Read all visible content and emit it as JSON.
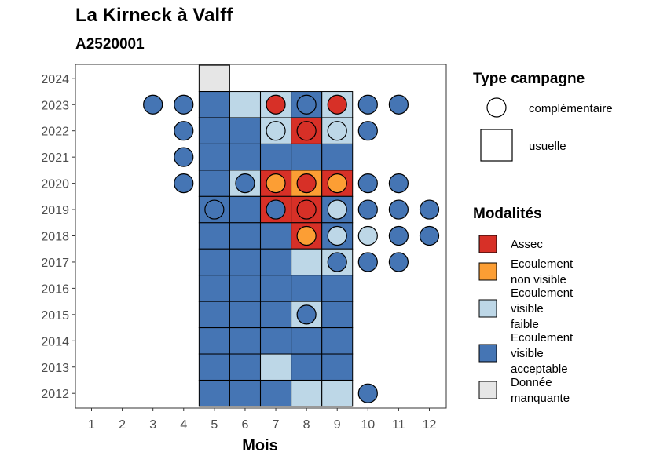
{
  "chart_data": {
    "type": "heatmap",
    "title": "La Kirneck à Valff",
    "subtitle": "A2520001",
    "xlabel": "Mois",
    "ylabel": "",
    "x_ticks": [
      1,
      2,
      3,
      4,
      5,
      6,
      7,
      8,
      9,
      10,
      11,
      12
    ],
    "y_ticks": [
      2012,
      2013,
      2014,
      2015,
      2016,
      2017,
      2018,
      2019,
      2020,
      2021,
      2022,
      2023,
      2024
    ],
    "colors": {
      "Assec": "#d73027",
      "Ecoulement non visible": "#fc9e34",
      "Ecoulement visible faible": "#bdd7e7",
      "Ecoulement visible acceptable": "#4575b4",
      "Donnée manquante": "#e6e6e6"
    },
    "legend_campaign": {
      "title": "Type campagne",
      "items": [
        {
          "shape": "circle",
          "label": "complémentaire"
        },
        {
          "shape": "square",
          "label": "usuelle"
        }
      ]
    },
    "legend_modalites": {
      "title": "Modalités",
      "items": [
        {
          "key": "Assec",
          "lines": [
            "Assec"
          ]
        },
        {
          "key": "Ecoulement non visible",
          "lines": [
            "Ecoulement",
            "non visible"
          ]
        },
        {
          "key": "Ecoulement visible faible",
          "lines": [
            "Ecoulement",
            "visible",
            "faible"
          ]
        },
        {
          "key": "Ecoulement visible acceptable",
          "lines": [
            "Ecoulement",
            "visible",
            "acceptable"
          ]
        },
        {
          "key": "Donnée manquante",
          "lines": [
            "Donnée",
            "manquante"
          ]
        }
      ]
    },
    "usuelle": [
      {
        "year": 2024,
        "month": 5,
        "value": "Donnée manquante"
      },
      {
        "year": 2023,
        "month": 5,
        "value": "Ecoulement visible acceptable"
      },
      {
        "year": 2023,
        "month": 6,
        "value": "Ecoulement visible faible"
      },
      {
        "year": 2023,
        "month": 7,
        "value": "Ecoulement visible faible"
      },
      {
        "year": 2023,
        "month": 8,
        "value": "Ecoulement visible acceptable"
      },
      {
        "year": 2023,
        "month": 9,
        "value": "Ecoulement visible faible"
      },
      {
        "year": 2022,
        "month": 5,
        "value": "Ecoulement visible acceptable"
      },
      {
        "year": 2022,
        "month": 6,
        "value": "Ecoulement visible acceptable"
      },
      {
        "year": 2022,
        "month": 7,
        "value": "Ecoulement visible faible"
      },
      {
        "year": 2022,
        "month": 8,
        "value": "Assec"
      },
      {
        "year": 2022,
        "month": 9,
        "value": "Ecoulement visible faible"
      },
      {
        "year": 2021,
        "month": 5,
        "value": "Ecoulement visible acceptable"
      },
      {
        "year": 2021,
        "month": 6,
        "value": "Ecoulement visible acceptable"
      },
      {
        "year": 2021,
        "month": 7,
        "value": "Ecoulement visible acceptable"
      },
      {
        "year": 2021,
        "month": 8,
        "value": "Ecoulement visible acceptable"
      },
      {
        "year": 2021,
        "month": 9,
        "value": "Ecoulement visible acceptable"
      },
      {
        "year": 2020,
        "month": 5,
        "value": "Ecoulement visible acceptable"
      },
      {
        "year": 2020,
        "month": 6,
        "value": "Ecoulement visible faible"
      },
      {
        "year": 2020,
        "month": 7,
        "value": "Assec"
      },
      {
        "year": 2020,
        "month": 8,
        "value": "Ecoulement non visible"
      },
      {
        "year": 2020,
        "month": 9,
        "value": "Assec"
      },
      {
        "year": 2019,
        "month": 5,
        "value": "Ecoulement visible acceptable"
      },
      {
        "year": 2019,
        "month": 6,
        "value": "Ecoulement visible acceptable"
      },
      {
        "year": 2019,
        "month": 7,
        "value": "Assec"
      },
      {
        "year": 2019,
        "month": 8,
        "value": "Assec"
      },
      {
        "year": 2019,
        "month": 9,
        "value": "Ecoulement visible acceptable"
      },
      {
        "year": 2018,
        "month": 5,
        "value": "Ecoulement visible acceptable"
      },
      {
        "year": 2018,
        "month": 6,
        "value": "Ecoulement visible acceptable"
      },
      {
        "year": 2018,
        "month": 7,
        "value": "Ecoulement visible acceptable"
      },
      {
        "year": 2018,
        "month": 8,
        "value": "Assec"
      },
      {
        "year": 2018,
        "month": 9,
        "value": "Ecoulement visible acceptable"
      },
      {
        "year": 2017,
        "month": 5,
        "value": "Ecoulement visible acceptable"
      },
      {
        "year": 2017,
        "month": 6,
        "value": "Ecoulement visible acceptable"
      },
      {
        "year": 2017,
        "month": 7,
        "value": "Ecoulement visible acceptable"
      },
      {
        "year": 2017,
        "month": 8,
        "value": "Ecoulement visible faible"
      },
      {
        "year": 2017,
        "month": 9,
        "value": "Ecoulement visible faible"
      },
      {
        "year": 2016,
        "month": 5,
        "value": "Ecoulement visible acceptable"
      },
      {
        "year": 2016,
        "month": 6,
        "value": "Ecoulement visible acceptable"
      },
      {
        "year": 2016,
        "month": 7,
        "value": "Ecoulement visible acceptable"
      },
      {
        "year": 2016,
        "month": 8,
        "value": "Ecoulement visible acceptable"
      },
      {
        "year": 2016,
        "month": 9,
        "value": "Ecoulement visible acceptable"
      },
      {
        "year": 2015,
        "month": 5,
        "value": "Ecoulement visible acceptable"
      },
      {
        "year": 2015,
        "month": 6,
        "value": "Ecoulement visible acceptable"
      },
      {
        "year": 2015,
        "month": 7,
        "value": "Ecoulement visible acceptable"
      },
      {
        "year": 2015,
        "month": 8,
        "value": "Ecoulement visible faible"
      },
      {
        "year": 2015,
        "month": 9,
        "value": "Ecoulement visible acceptable"
      },
      {
        "year": 2014,
        "month": 5,
        "value": "Ecoulement visible acceptable"
      },
      {
        "year": 2014,
        "month": 6,
        "value": "Ecoulement visible acceptable"
      },
      {
        "year": 2014,
        "month": 7,
        "value": "Ecoulement visible acceptable"
      },
      {
        "year": 2014,
        "month": 8,
        "value": "Ecoulement visible acceptable"
      },
      {
        "year": 2014,
        "month": 9,
        "value": "Ecoulement visible acceptable"
      },
      {
        "year": 2013,
        "month": 5,
        "value": "Ecoulement visible acceptable"
      },
      {
        "year": 2013,
        "month": 6,
        "value": "Ecoulement visible acceptable"
      },
      {
        "year": 2013,
        "month": 7,
        "value": "Ecoulement visible faible"
      },
      {
        "year": 2013,
        "month": 8,
        "value": "Ecoulement visible acceptable"
      },
      {
        "year": 2013,
        "month": 9,
        "value": "Ecoulement visible acceptable"
      },
      {
        "year": 2012,
        "month": 5,
        "value": "Ecoulement visible acceptable"
      },
      {
        "year": 2012,
        "month": 6,
        "value": "Ecoulement visible acceptable"
      },
      {
        "year": 2012,
        "month": 7,
        "value": "Ecoulement visible acceptable"
      },
      {
        "year": 2012,
        "month": 8,
        "value": "Ecoulement visible faible"
      },
      {
        "year": 2012,
        "month": 9,
        "value": "Ecoulement visible faible"
      }
    ],
    "complementaire": [
      {
        "year": 2023,
        "month": 3,
        "value": "Ecoulement visible acceptable"
      },
      {
        "year": 2023,
        "month": 4,
        "value": "Ecoulement visible acceptable"
      },
      {
        "year": 2023,
        "month": 7,
        "value": "Assec"
      },
      {
        "year": 2023,
        "month": 8,
        "value": "Ecoulement visible acceptable"
      },
      {
        "year": 2023,
        "month": 9,
        "value": "Assec"
      },
      {
        "year": 2023,
        "month": 10,
        "value": "Ecoulement visible acceptable"
      },
      {
        "year": 2023,
        "month": 11,
        "value": "Ecoulement visible acceptable"
      },
      {
        "year": 2022,
        "month": 4,
        "value": "Ecoulement visible acceptable"
      },
      {
        "year": 2022,
        "month": 7,
        "value": "Ecoulement visible faible"
      },
      {
        "year": 2022,
        "month": 8,
        "value": "Assec"
      },
      {
        "year": 2022,
        "month": 9,
        "value": "Ecoulement visible faible"
      },
      {
        "year": 2022,
        "month": 10,
        "value": "Ecoulement visible acceptable"
      },
      {
        "year": 2021,
        "month": 4,
        "value": "Ecoulement visible acceptable"
      },
      {
        "year": 2020,
        "month": 4,
        "value": "Ecoulement visible acceptable"
      },
      {
        "year": 2020,
        "month": 6,
        "value": "Ecoulement visible acceptable"
      },
      {
        "year": 2020,
        "month": 7,
        "value": "Ecoulement non visible"
      },
      {
        "year": 2020,
        "month": 8,
        "value": "Assec"
      },
      {
        "year": 2020,
        "month": 9,
        "value": "Ecoulement non visible"
      },
      {
        "year": 2020,
        "month": 10,
        "value": "Ecoulement visible acceptable"
      },
      {
        "year": 2020,
        "month": 11,
        "value": "Ecoulement visible acceptable"
      },
      {
        "year": 2019,
        "month": 5,
        "value": "Ecoulement visible acceptable"
      },
      {
        "year": 2019,
        "month": 7,
        "value": "Ecoulement visible acceptable"
      },
      {
        "year": 2019,
        "month": 8,
        "value": "Assec"
      },
      {
        "year": 2019,
        "month": 9,
        "value": "Ecoulement visible faible"
      },
      {
        "year": 2019,
        "month": 10,
        "value": "Ecoulement visible acceptable"
      },
      {
        "year": 2019,
        "month": 11,
        "value": "Ecoulement visible acceptable"
      },
      {
        "year": 2019,
        "month": 12,
        "value": "Ecoulement visible acceptable"
      },
      {
        "year": 2018,
        "month": 8,
        "value": "Ecoulement non visible"
      },
      {
        "year": 2018,
        "month": 9,
        "value": "Ecoulement visible faible"
      },
      {
        "year": 2018,
        "month": 10,
        "value": "Ecoulement visible faible"
      },
      {
        "year": 2018,
        "month": 11,
        "value": "Ecoulement visible acceptable"
      },
      {
        "year": 2018,
        "month": 12,
        "value": "Ecoulement visible acceptable"
      },
      {
        "year": 2017,
        "month": 9,
        "value": "Ecoulement visible acceptable"
      },
      {
        "year": 2017,
        "month": 10,
        "value": "Ecoulement visible acceptable"
      },
      {
        "year": 2017,
        "month": 11,
        "value": "Ecoulement visible acceptable"
      },
      {
        "year": 2015,
        "month": 8,
        "value": "Ecoulement visible acceptable"
      },
      {
        "year": 2012,
        "month": 10,
        "value": "Ecoulement visible acceptable"
      }
    ]
  }
}
